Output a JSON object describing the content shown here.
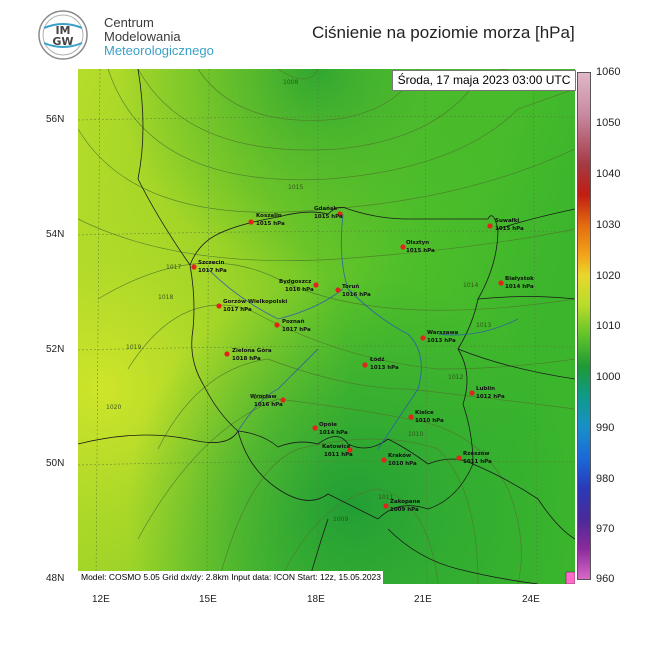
{
  "header": {
    "org_line1": "Centrum",
    "org_line2": "Modelowania",
    "org_line3": "Meteorologicznego",
    "title": "Ciśnienie na poziomie morza [hPa]",
    "logo_text": "IMGW"
  },
  "datetime": "Środa, 17 maja 2023 03:00 UTC",
  "model_info": "Model: COSMO 5.05  Grid dx/dy: 2.8km  Input data: ICON  Start: 12z, 15.05.2023",
  "lat_labels": [
    "56N",
    "54N",
    "52N",
    "50N",
    "48N"
  ],
  "lon_labels": [
    "12E",
    "15E",
    "18E",
    "21E",
    "24E"
  ],
  "colorbar": {
    "labels": [
      "1060",
      "1050",
      "1040",
      "1030",
      "1020",
      "1010",
      "1000",
      "990",
      "980",
      "970",
      "960"
    ]
  },
  "cities": [
    {
      "name": "Koszalin",
      "value": "1015 hPa"
    },
    {
      "name": "Gdańsk",
      "value": "1015 hPa"
    },
    {
      "name": "Suwałki",
      "value": "1015 hPa"
    },
    {
      "name": "Olsztyn",
      "value": "1015 hPa"
    },
    {
      "name": "Szczecin",
      "value": "1017 hPa"
    },
    {
      "name": "Bydgoszcz",
      "value": "1016 hPa"
    },
    {
      "name": "Toruń",
      "value": "1016 hPa"
    },
    {
      "name": "Białystok",
      "value": "1014 hPa"
    },
    {
      "name": "Gorzów Wielkopolski",
      "value": "1017 hPa"
    },
    {
      "name": "Poznań",
      "value": "1017 hPa"
    },
    {
      "name": "Warszawa",
      "value": "1013 hPa"
    },
    {
      "name": "Zielona Góra",
      "value": "1018 hPa"
    },
    {
      "name": "Łódź",
      "value": "1013 hPa"
    },
    {
      "name": "Lublin",
      "value": "1012 hPa"
    },
    {
      "name": "Wrocław",
      "value": "1016 hPa"
    },
    {
      "name": "Kielce",
      "value": "1010 hPa"
    },
    {
      "name": "Opole",
      "value": "1014 hPa"
    },
    {
      "name": "Katowice",
      "value": "1011 hPa"
    },
    {
      "name": "Kraków",
      "value": "1010 hPa"
    },
    {
      "name": "Rzeszów",
      "value": "1011 hPa"
    },
    {
      "name": "Zakopane",
      "value": "1009 hPa"
    }
  ],
  "isobar_labels": [
    "1008",
    "1009",
    "1010",
    "1011",
    "1012",
    "1013",
    "1014",
    "1015",
    "1016",
    "1017",
    "1018",
    "1019",
    "1020"
  ]
}
